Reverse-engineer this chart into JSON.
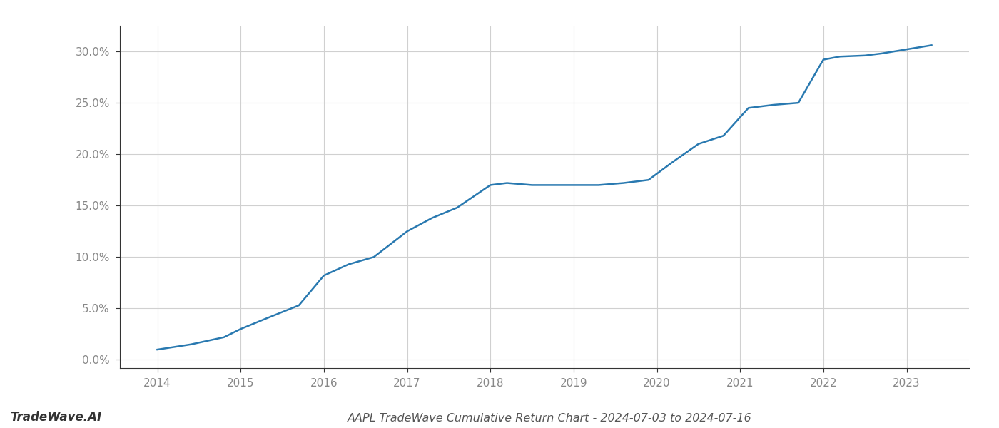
{
  "title": "AAPL TradeWave Cumulative Return Chart - 2024-07-03 to 2024-07-16",
  "watermark": "TradeWave.AI",
  "line_color": "#2979b0",
  "line_width": 1.8,
  "background_color": "#ffffff",
  "grid_color": "#d0d0d0",
  "x_years": [
    2014.0,
    2014.4,
    2014.8,
    2015.0,
    2015.3,
    2015.7,
    2016.0,
    2016.3,
    2016.6,
    2017.0,
    2017.3,
    2017.6,
    2018.0,
    2018.2,
    2018.5,
    2018.8,
    2019.0,
    2019.3,
    2019.6,
    2019.9,
    2020.2,
    2020.5,
    2020.8,
    2021.1,
    2021.4,
    2021.7,
    2022.0,
    2022.2,
    2022.5,
    2022.7,
    2023.0,
    2023.3
  ],
  "y_values": [
    0.01,
    0.015,
    0.022,
    0.03,
    0.04,
    0.053,
    0.082,
    0.093,
    0.1,
    0.125,
    0.138,
    0.148,
    0.17,
    0.172,
    0.17,
    0.17,
    0.17,
    0.17,
    0.172,
    0.175,
    0.193,
    0.21,
    0.218,
    0.245,
    0.248,
    0.25,
    0.292,
    0.295,
    0.296,
    0.298,
    0.302,
    0.306
  ],
  "yticks": [
    0.0,
    0.05,
    0.1,
    0.15,
    0.2,
    0.25,
    0.3
  ],
  "ytick_labels": [
    "0.0%",
    "5.0%",
    "10.0%",
    "15.0%",
    "20.0%",
    "25.0%",
    "30.0%"
  ],
  "xticks": [
    2014,
    2015,
    2016,
    2017,
    2018,
    2019,
    2020,
    2021,
    2022,
    2023
  ],
  "xlim": [
    2013.55,
    2023.75
  ],
  "ylim": [
    -0.008,
    0.325
  ],
  "title_fontsize": 11.5,
  "watermark_fontsize": 12,
  "tick_fontsize": 11,
  "tick_color": "#888888",
  "spine_color": "#333333"
}
